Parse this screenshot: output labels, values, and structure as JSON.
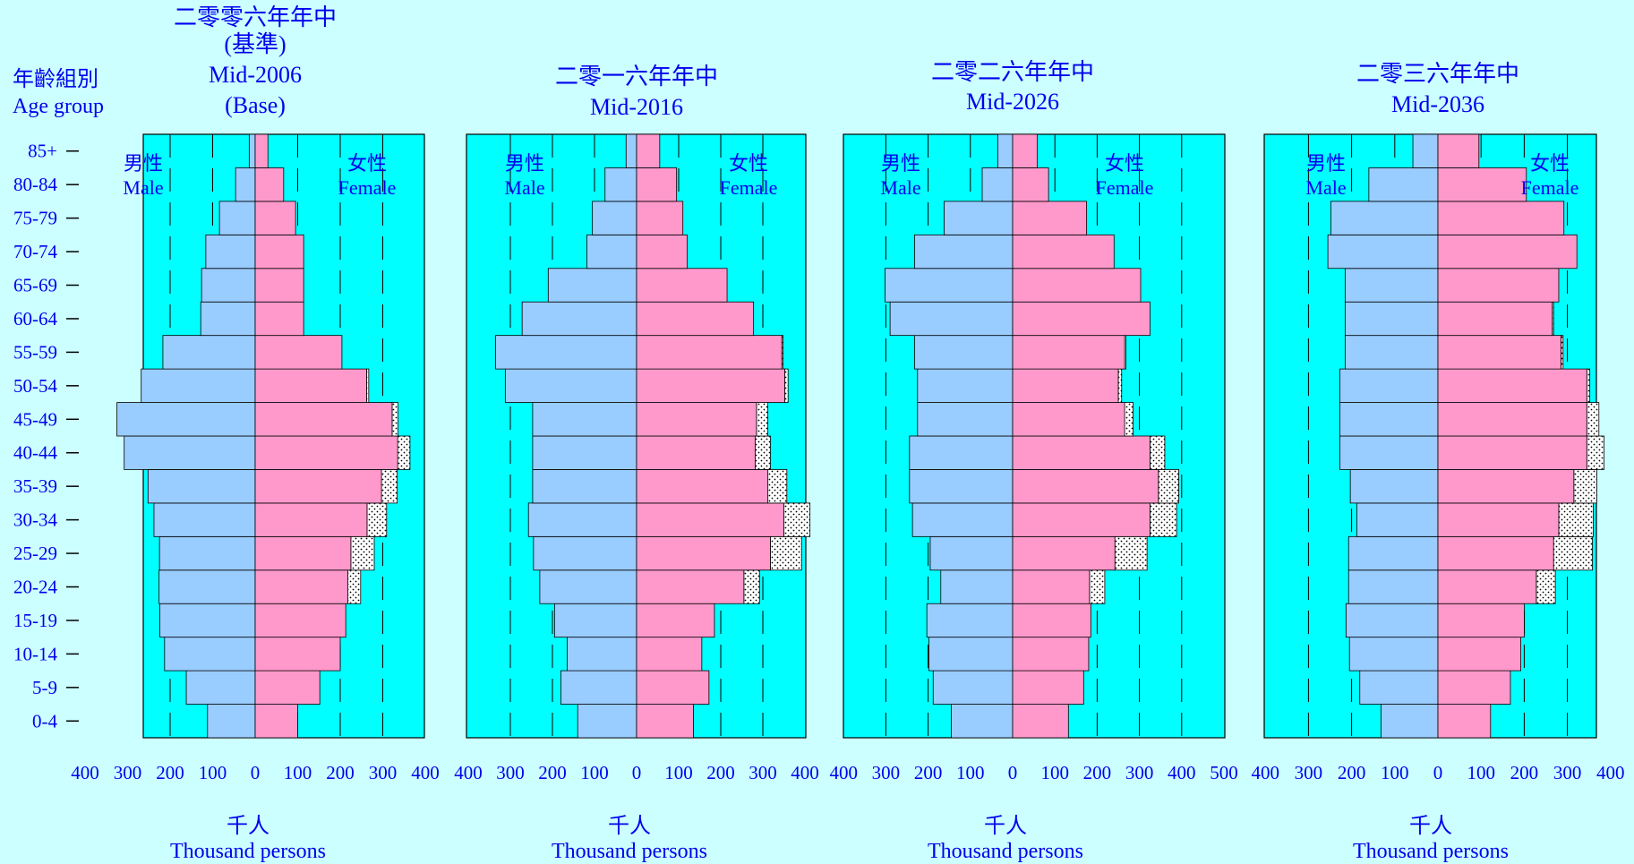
{
  "age_group_heading": {
    "cn": "年齡組別",
    "en": "Age group"
  },
  "age_groups": [
    "0-4",
    "5-9",
    "10-14",
    "15-19",
    "20-24",
    "25-29",
    "30-34",
    "35-39",
    "40-44",
    "45-49",
    "50-54",
    "55-59",
    "60-64",
    "65-69",
    "70-74",
    "75-79",
    "80-84",
    "85+"
  ],
  "unit": {
    "cn": "千人",
    "en": "Thousand persons"
  },
  "labels": {
    "male_cn": "男性",
    "male_en": "Male",
    "female_cn": "女性",
    "female_en": "Female"
  },
  "colors": {
    "background": "#ccffff",
    "plot_bg": "#00ffff",
    "male": "#99ccff",
    "female": "#ff99cc",
    "text": "#0000ee"
  },
  "chart_data": [
    {
      "type": "bar",
      "orientation": "population-pyramid",
      "title_lines": [
        "二零零六年年中",
        "(基準)",
        "Mid-2006",
        "(Base)"
      ],
      "x_ticks_left": [
        "400",
        "300",
        "200",
        "100",
        "0"
      ],
      "x_ticks_right": [
        "100",
        "200",
        "300",
        "400"
      ],
      "xlim_male": 400,
      "xlim_female": 400,
      "categories": [
        "0-4",
        "5-9",
        "10-14",
        "15-19",
        "20-24",
        "25-29",
        "30-34",
        "35-39",
        "40-44",
        "45-49",
        "50-54",
        "55-59",
        "60-64",
        "65-69",
        "70-74",
        "75-79",
        "80-84",
        "85+"
      ],
      "series": [
        {
          "name": "Male",
          "values": [
            112,
            162,
            213,
            224,
            226,
            225,
            238,
            252,
            308,
            325,
            268,
            217,
            128,
            126,
            116,
            84,
            46,
            14
          ]
        },
        {
          "name": "Female",
          "values": [
            100,
            152,
            200,
            213,
            218,
            225,
            263,
            297,
            335,
            322,
            262,
            204,
            114,
            114,
            114,
            95,
            67,
            30
          ]
        },
        {
          "name": "Female incl. dotted",
          "values": [
            100,
            152,
            200,
            213,
            248,
            280,
            309,
            334,
            364,
            336,
            267,
            204,
            114,
            114,
            114,
            95,
            67,
            30
          ]
        }
      ]
    },
    {
      "type": "bar",
      "orientation": "population-pyramid",
      "title_lines": [
        "二零一六年年中",
        "Mid-2016"
      ],
      "x_ticks_left": [
        "400",
        "300",
        "200",
        "100",
        "0"
      ],
      "x_ticks_right": [
        "100",
        "200",
        "300",
        "400"
      ],
      "xlim_male": 400,
      "xlim_female": 400,
      "categories": [
        "0-4",
        "5-9",
        "10-14",
        "15-19",
        "20-24",
        "25-29",
        "30-34",
        "35-39",
        "40-44",
        "45-49",
        "50-54",
        "55-59",
        "60-64",
        "65-69",
        "70-74",
        "75-79",
        "80-84",
        "85+"
      ],
      "series": [
        {
          "name": "Male",
          "values": [
            140,
            180,
            165,
            195,
            230,
            245,
            257,
            247,
            247,
            247,
            312,
            335,
            272,
            210,
            118,
            105,
            75,
            25
          ]
        },
        {
          "name": "Female",
          "values": [
            135,
            172,
            155,
            185,
            255,
            318,
            350,
            312,
            282,
            285,
            352,
            345,
            278,
            215,
            120,
            110,
            95,
            55
          ]
        },
        {
          "name": "Female incl. dotted",
          "values": [
            135,
            172,
            155,
            185,
            292,
            392,
            412,
            357,
            318,
            312,
            360,
            348,
            278,
            215,
            120,
            110,
            95,
            55
          ]
        }
      ]
    },
    {
      "type": "bar",
      "orientation": "population-pyramid",
      "title_lines": [
        "二零二六年年中",
        "Mid-2026"
      ],
      "x_ticks_left": [
        "400",
        "300",
        "200",
        "100",
        "0"
      ],
      "x_ticks_right": [
        "100",
        "200",
        "300",
        "400",
        "500"
      ],
      "xlim_male": 400,
      "xlim_female": 500,
      "categories": [
        "0-4",
        "5-9",
        "10-14",
        "15-19",
        "20-24",
        "25-29",
        "30-34",
        "35-39",
        "40-44",
        "45-49",
        "50-54",
        "55-59",
        "60-64",
        "65-69",
        "70-74",
        "75-79",
        "80-84",
        "85+"
      ],
      "series": [
        {
          "name": "Male",
          "values": [
            145,
            188,
            198,
            203,
            170,
            195,
            237,
            244,
            244,
            225,
            225,
            232,
            290,
            302,
            232,
            162,
            72,
            35
          ]
        },
        {
          "name": "Female",
          "values": [
            132,
            168,
            180,
            185,
            182,
            242,
            325,
            345,
            325,
            265,
            250,
            265,
            325,
            303,
            240,
            175,
            85,
            58
          ]
        },
        {
          "name": "Female incl. dotted",
          "values": [
            132,
            168,
            180,
            185,
            218,
            318,
            388,
            393,
            360,
            285,
            258,
            268,
            325,
            303,
            240,
            175,
            85,
            58
          ]
        }
      ]
    },
    {
      "type": "bar",
      "orientation": "population-pyramid",
      "title_lines": [
        "二零三六年年中",
        "Mid-2036"
      ],
      "x_ticks_left": [
        "400",
        "300",
        "200",
        "100",
        "0"
      ],
      "x_ticks_right": [
        "100",
        "200",
        "300",
        "400"
      ],
      "xlim_male": 400,
      "xlim_female": 400,
      "categories": [
        "0-4",
        "5-9",
        "10-14",
        "15-19",
        "20-24",
        "25-29",
        "30-34",
        "35-39",
        "40-44",
        "45-49",
        "50-54",
        "55-59",
        "60-64",
        "65-69",
        "70-74",
        "75-79",
        "80-84",
        "85+"
      ],
      "series": [
        {
          "name": "Male",
          "values": [
            132,
            181,
            205,
            213,
            207,
            207,
            188,
            203,
            227,
            227,
            227,
            215,
            215,
            215,
            255,
            248,
            160,
            58
          ]
        },
        {
          "name": "Female",
          "values": [
            122,
            168,
            192,
            200,
            228,
            268,
            280,
            315,
            345,
            345,
            345,
            285,
            265,
            280,
            322,
            292,
            205,
            95
          ]
        },
        {
          "name": "Female incl. dotted",
          "values": [
            122,
            168,
            192,
            200,
            272,
            358,
            360,
            368,
            385,
            373,
            352,
            290,
            268,
            280,
            322,
            292,
            205,
            95
          ]
        }
      ]
    }
  ]
}
